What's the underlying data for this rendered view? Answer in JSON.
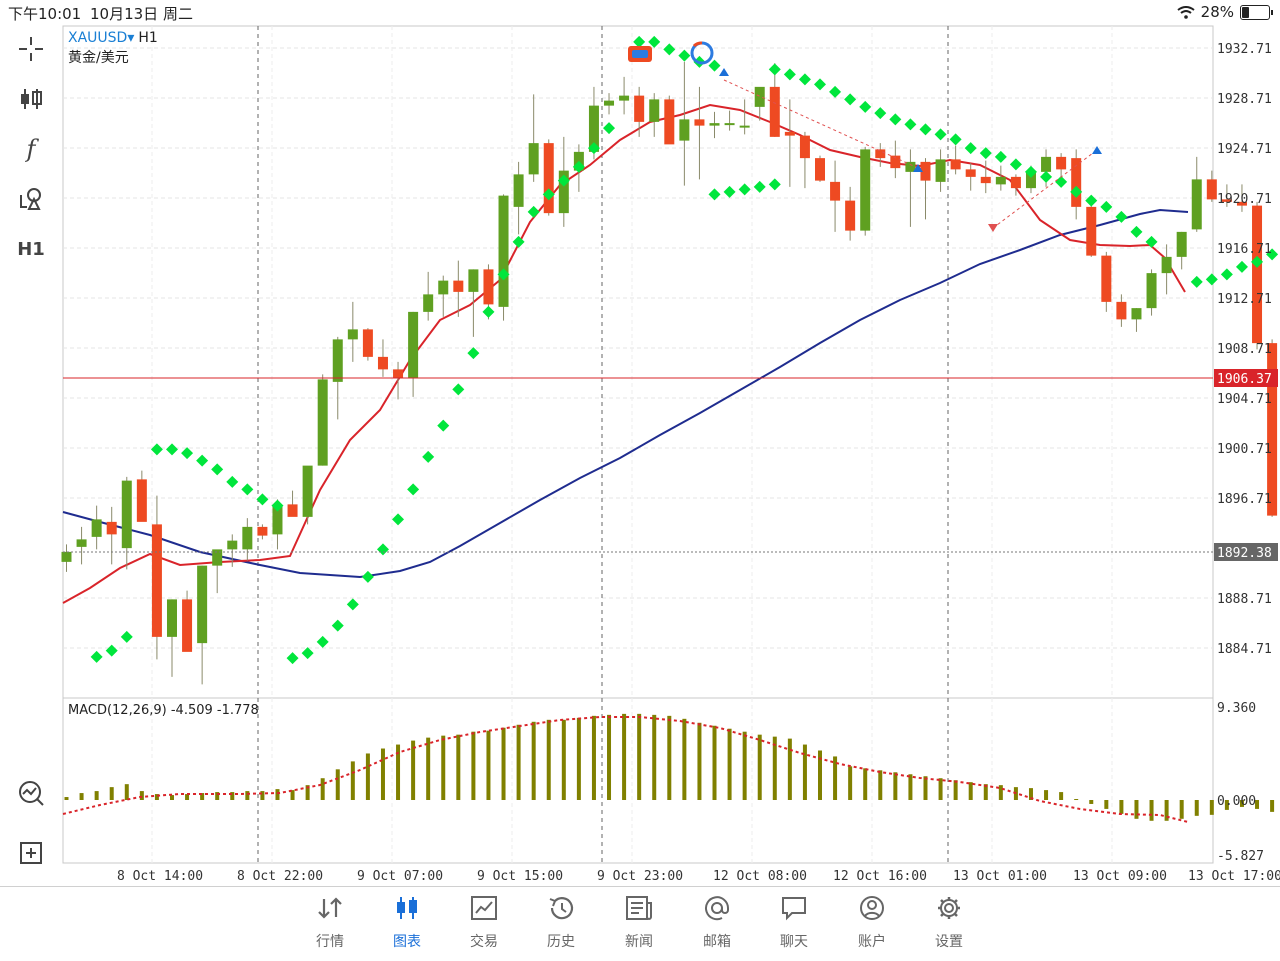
{
  "status": {
    "time": "下午10:01",
    "date": "10月13日 周二",
    "battery": "28%"
  },
  "symbol": {
    "ticker": "XAUUSD",
    "dropdown": "▾",
    "timeframe": "H1",
    "name": "黄金/美元"
  },
  "price_axis": [
    "1932.71",
    "1928.71",
    "1924.71",
    "1920.71",
    "1916.71",
    "1912.71",
    "1908.71",
    "1904.71",
    "1900.71",
    "1896.71",
    "1888.71",
    "1884.71"
  ],
  "current_price": "1906.37",
  "cursor_price": "1892.38",
  "macd": {
    "label": "MACD(12,26,9) -4.509 -1.778",
    "axis": [
      "9.360",
      "0.000",
      "-5.827"
    ]
  },
  "time_axis": [
    "8 Oct 14:00",
    "8 Oct 22:00",
    "9 Oct 07:00",
    "9 Oct 15:00",
    "9 Oct 23:00",
    "12 Oct 08:00",
    "12 Oct 16:00",
    "13 Oct 01:00",
    "13 Oct 09:00",
    "13 Oct 17:00"
  ],
  "toolbar": {
    "crosshair": "crosshair-icon",
    "chart_type": "candles-icon",
    "indicators": "f",
    "objects": "objects-icon",
    "timeframe": "H1",
    "analysis": "analysis-icon",
    "add": "add-window-icon"
  },
  "tabs": [
    {
      "label": "行情",
      "icon": "arrows-icon"
    },
    {
      "label": "图表",
      "icon": "candles-icon"
    },
    {
      "label": "交易",
      "icon": "trade-chart-icon"
    },
    {
      "label": "历史",
      "icon": "history-icon"
    },
    {
      "label": "新闻",
      "icon": "news-icon"
    },
    {
      "label": "邮箱",
      "icon": "at-icon"
    },
    {
      "label": "聊天",
      "icon": "chat-icon"
    },
    {
      "label": "账户",
      "icon": "account-icon"
    },
    {
      "label": "设置",
      "icon": "gear-icon"
    }
  ],
  "colors": {
    "bull": "#5fa021",
    "bear": "#ee4a22",
    "sar": "#00e63c",
    "ma_fast": "#d9242a",
    "ma_slow": "#1f2c8f",
    "macd_bar": "#808000",
    "signal": "#d9242a",
    "price_line": "#d9242a",
    "active_tab": "#1a6fd8"
  }
}
